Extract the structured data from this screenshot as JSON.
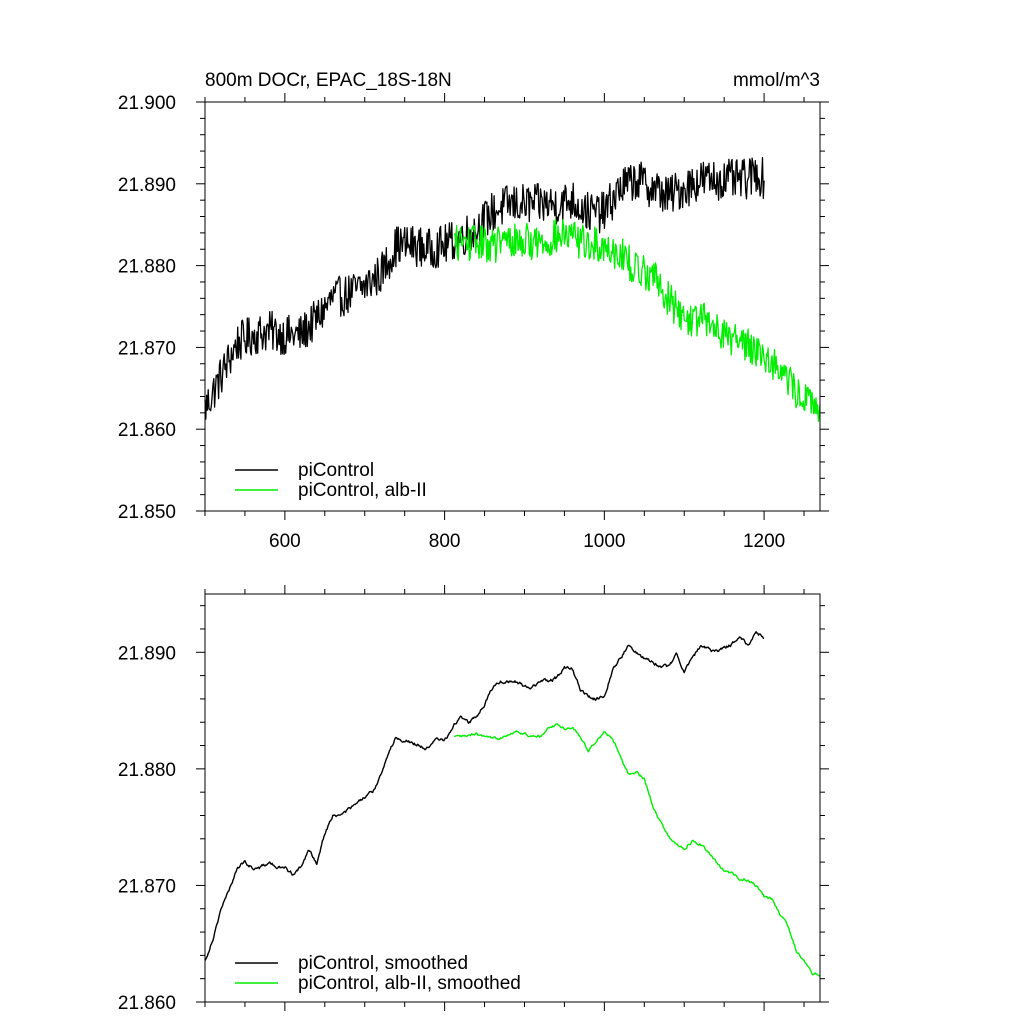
{
  "chart_data": [
    {
      "type": "line",
      "title": "800m DOCr, EPAC_18S-18N",
      "units": "mmol/m^3",
      "xlabel": "",
      "ylabel": "",
      "xlim": [
        500,
        1270
      ],
      "ylim": [
        21.85,
        21.9
      ],
      "x_ticks": [
        600,
        800,
        1000,
        1200
      ],
      "y_ticks": [
        21.85,
        21.86,
        21.87,
        21.88,
        21.89,
        21.9
      ],
      "x_tick_labels": [
        "600",
        "800",
        "1000",
        "1200"
      ],
      "y_tick_labels": [
        "21.850",
        "21.860",
        "21.870",
        "21.880",
        "21.890",
        "21.900"
      ],
      "legend_position": "bottom-left",
      "series": [
        {
          "name": "piControl",
          "color": "#000000",
          "noise": 0.0025,
          "x_range": [
            500,
            1200
          ],
          "anchors": [
            [
              500,
              21.8625
            ],
            [
              520,
              21.8665
            ],
            [
              540,
              21.8705
            ],
            [
              560,
              21.8715
            ],
            [
              580,
              21.872
            ],
            [
              600,
              21.8715
            ],
            [
              620,
              21.8715
            ],
            [
              640,
              21.8735
            ],
            [
              660,
              21.876
            ],
            [
              680,
              21.8765
            ],
            [
              700,
              21.8775
            ],
            [
              720,
              21.879
            ],
            [
              740,
              21.8825
            ],
            [
              760,
              21.8825
            ],
            [
              780,
              21.882
            ],
            [
              800,
              21.8825
            ],
            [
              820,
              21.8835
            ],
            [
              840,
              21.8845
            ],
            [
              860,
              21.8865
            ],
            [
              880,
              21.8875
            ],
            [
              900,
              21.8875
            ],
            [
              920,
              21.8875
            ],
            [
              940,
              21.8875
            ],
            [
              960,
              21.888
            ],
            [
              980,
              21.8865
            ],
            [
              1000,
              21.8865
            ],
            [
              1020,
              21.8895
            ],
            [
              1040,
              21.8905
            ],
            [
              1060,
              21.8895
            ],
            [
              1080,
              21.8885
            ],
            [
              1100,
              21.8895
            ],
            [
              1120,
              21.8905
            ],
            [
              1140,
              21.8905
            ],
            [
              1160,
              21.8905
            ],
            [
              1180,
              21.8905
            ],
            [
              1190,
              21.8915
            ],
            [
              1200,
              21.8905
            ]
          ]
        },
        {
          "name": "piControl, alb-II",
          "color": "#00ee00",
          "noise": 0.0022,
          "x_range": [
            812,
            1270
          ],
          "anchors": [
            [
              812,
              21.8828
            ],
            [
              840,
              21.8828
            ],
            [
              860,
              21.8825
            ],
            [
              880,
              21.883
            ],
            [
              900,
              21.883
            ],
            [
              920,
              21.8828
            ],
            [
              940,
              21.8835
            ],
            [
              960,
              21.8835
            ],
            [
              980,
              21.8825
            ],
            [
              1000,
              21.8825
            ],
            [
              1020,
              21.8815
            ],
            [
              1040,
              21.8795
            ],
            [
              1060,
              21.879
            ],
            [
              1080,
              21.876
            ],
            [
              1100,
              21.8735
            ],
            [
              1120,
              21.8735
            ],
            [
              1140,
              21.8725
            ],
            [
              1160,
              21.871
            ],
            [
              1180,
              21.8705
            ],
            [
              1200,
              21.869
            ],
            [
              1220,
              21.8675
            ],
            [
              1240,
              21.8645
            ],
            [
              1255,
              21.8635
            ],
            [
              1270,
              21.8625
            ]
          ]
        }
      ]
    },
    {
      "type": "line",
      "title": "",
      "xlabel": "",
      "ylabel": "",
      "xlim": [
        500,
        1270
      ],
      "ylim": [
        21.86,
        21.895
      ],
      "x_ticks": [
        600,
        800,
        1000,
        1200
      ],
      "y_ticks": [
        21.86,
        21.87,
        21.88,
        21.89
      ],
      "x_tick_labels": [],
      "y_tick_labels": [
        "21.860",
        "21.870",
        "21.880",
        "21.890"
      ],
      "legend_position": "bottom-left",
      "series": [
        {
          "name": "piControl, smoothed",
          "color": "#000000",
          "noise": 0.0004,
          "x_range": [
            500,
            1200
          ],
          "anchors": [
            [
              500,
              21.8635
            ],
            [
              510,
              21.8655
            ],
            [
              520,
              21.868
            ],
            [
              530,
              21.8695
            ],
            [
              540,
              21.8715
            ],
            [
              550,
              21.872
            ],
            [
              560,
              21.8715
            ],
            [
              570,
              21.8715
            ],
            [
              580,
              21.872
            ],
            [
              590,
              21.8715
            ],
            [
              600,
              21.8715
            ],
            [
              610,
              21.871
            ],
            [
              620,
              21.8715
            ],
            [
              630,
              21.873
            ],
            [
              640,
              21.872
            ],
            [
              650,
              21.8745
            ],
            [
              660,
              21.876
            ],
            [
              670,
              21.876
            ],
            [
              680,
              21.8765
            ],
            [
              690,
              21.877
            ],
            [
              700,
              21.8775
            ],
            [
              710,
              21.878
            ],
            [
              720,
              21.8795
            ],
            [
              730,
              21.8815
            ],
            [
              740,
              21.8827
            ],
            [
              750,
              21.8825
            ],
            [
              760,
              21.8822
            ],
            [
              770,
              21.882
            ],
            [
              780,
              21.8817
            ],
            [
              790,
              21.8825
            ],
            [
              800,
              21.8825
            ],
            [
              810,
              21.8835
            ],
            [
              820,
              21.8845
            ],
            [
              830,
              21.884
            ],
            [
              840,
              21.8845
            ],
            [
              850,
              21.8855
            ],
            [
              860,
              21.887
            ],
            [
              870,
              21.8875
            ],
            [
              880,
              21.8875
            ],
            [
              890,
              21.8875
            ],
            [
              900,
              21.8872
            ],
            [
              910,
              21.887
            ],
            [
              920,
              21.8875
            ],
            [
              930,
              21.8875
            ],
            [
              940,
              21.8878
            ],
            [
              950,
              21.8888
            ],
            [
              960,
              21.8885
            ],
            [
              970,
              21.8868
            ],
            [
              980,
              21.8862
            ],
            [
              990,
              21.886
            ],
            [
              1000,
              21.8863
            ],
            [
              1010,
              21.8885
            ],
            [
              1020,
              21.8895
            ],
            [
              1030,
              21.8905
            ],
            [
              1040,
              21.89
            ],
            [
              1050,
              21.8895
            ],
            [
              1060,
              21.8893
            ],
            [
              1070,
              21.8888
            ],
            [
              1080,
              21.8887
            ],
            [
              1090,
              21.8898
            ],
            [
              1100,
              21.8885
            ],
            [
              1110,
              21.8895
            ],
            [
              1120,
              21.8905
            ],
            [
              1130,
              21.8903
            ],
            [
              1140,
              21.89
            ],
            [
              1150,
              21.8905
            ],
            [
              1160,
              21.8907
            ],
            [
              1170,
              21.8913
            ],
            [
              1180,
              21.8905
            ],
            [
              1190,
              21.892
            ],
            [
              1200,
              21.891
            ]
          ]
        },
        {
          "name": "piControl, alb-II, smoothed",
          "color": "#00ee00",
          "noise": 0.0003,
          "x_range": [
            812,
            1270
          ],
          "anchors": [
            [
              812,
              21.8827
            ],
            [
              830,
              21.8828
            ],
            [
              840,
              21.883
            ],
            [
              850,
              21.8827
            ],
            [
              860,
              21.8825
            ],
            [
              870,
              21.8827
            ],
            [
              880,
              21.883
            ],
            [
              890,
              21.8832
            ],
            [
              900,
              21.883
            ],
            [
              910,
              21.8827
            ],
            [
              920,
              21.8828
            ],
            [
              930,
              21.8835
            ],
            [
              940,
              21.8838
            ],
            [
              950,
              21.8835
            ],
            [
              960,
              21.8835
            ],
            [
              970,
              21.8828
            ],
            [
              980,
              21.8815
            ],
            [
              990,
              21.8825
            ],
            [
              1000,
              21.8832
            ],
            [
              1010,
              21.8825
            ],
            [
              1020,
              21.8812
            ],
            [
              1030,
              21.8795
            ],
            [
              1040,
              21.8797
            ],
            [
              1050,
              21.8792
            ],
            [
              1060,
              21.877
            ],
            [
              1070,
              21.8755
            ],
            [
              1080,
              21.8742
            ],
            [
              1090,
              21.8735
            ],
            [
              1100,
              21.8732
            ],
            [
              1110,
              21.8738
            ],
            [
              1120,
              21.8735
            ],
            [
              1130,
              21.8728
            ],
            [
              1140,
              21.872
            ],
            [
              1150,
              21.8712
            ],
            [
              1160,
              21.871
            ],
            [
              1170,
              21.8705
            ],
            [
              1180,
              21.8705
            ],
            [
              1190,
              21.87
            ],
            [
              1200,
              21.869
            ],
            [
              1210,
              21.8688
            ],
            [
              1220,
              21.8675
            ],
            [
              1230,
              21.8665
            ],
            [
              1240,
              21.8645
            ],
            [
              1250,
              21.8635
            ],
            [
              1260,
              21.8625
            ],
            [
              1270,
              21.8623
            ]
          ]
        }
      ]
    }
  ]
}
